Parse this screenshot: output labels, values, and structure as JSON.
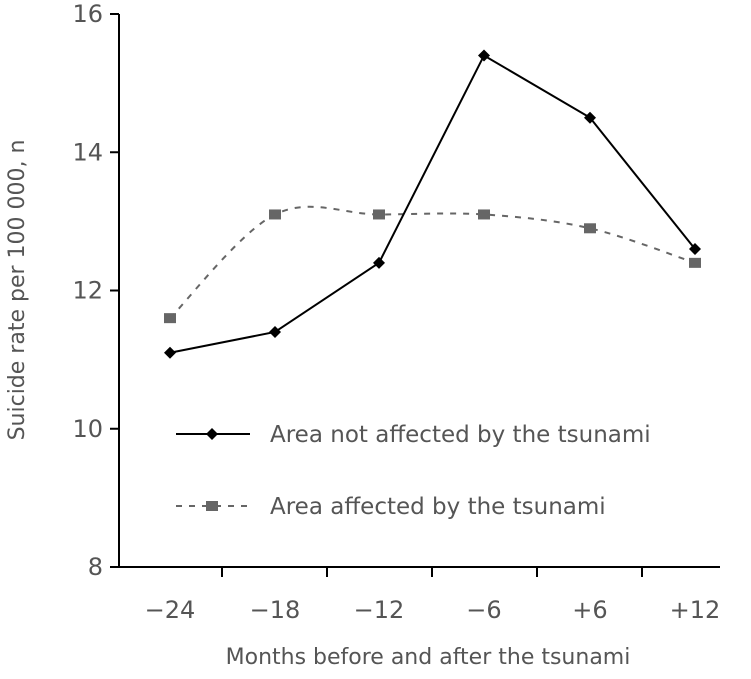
{
  "chart_data": {
    "type": "line",
    "title": "",
    "xlabel": "Months before and after the tsunami",
    "ylabel": "Suicide rate per 100 000, n",
    "categories": [
      "−24",
      "−18",
      "−12",
      "−6",
      "+6",
      "+12"
    ],
    "ylim": [
      8,
      16
    ],
    "yticks": [
      8,
      10,
      12,
      14,
      16
    ],
    "grid": false,
    "legend_position": "lower-right",
    "series": [
      {
        "name": "Area not affected by the tsunami",
        "values": [
          11.1,
          11.4,
          12.4,
          15.4,
          14.5,
          12.6
        ],
        "color": "#000000",
        "line_style": "solid",
        "marker": "diamond"
      },
      {
        "name": "Area affected by the tsunami",
        "values": [
          11.6,
          13.1,
          13.1,
          13.1,
          12.9,
          12.4
        ],
        "color": "#666666",
        "line_style": "dashed",
        "marker": "square"
      }
    ]
  }
}
